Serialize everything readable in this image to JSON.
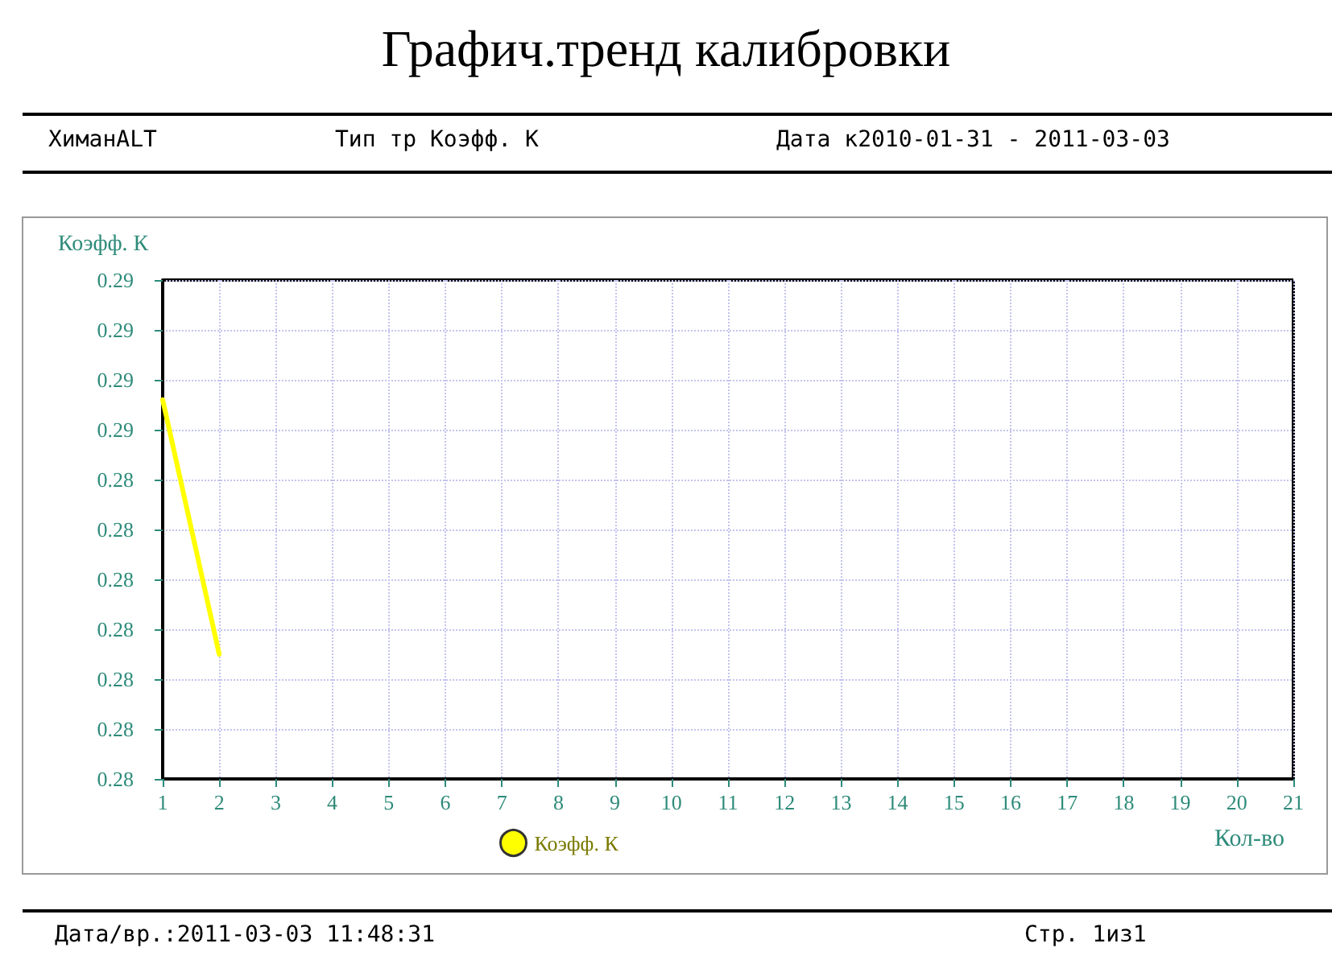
{
  "chart_data": {
    "type": "line",
    "title": "Графич.тренд калибровки",
    "xlabel": "Кол-во",
    "ylabel": "Коэфф. К",
    "annotations": [
      "ХиманALT",
      "Тип тр Коэфф. К",
      "Дата к2010-01-31 - 2011-03-03",
      "Дата/вр.:2011-03-03 11:48:31",
      "Стр. 1из1"
    ],
    "x": [
      1,
      2
    ],
    "series": [
      {
        "name": "Коэфф. К",
        "color": "#ffff00",
        "values": [
          0.2866,
          0.2815
        ]
      }
    ],
    "xlim": [
      1,
      21
    ],
    "xticks": [
      1,
      2,
      3,
      4,
      5,
      6,
      7,
      8,
      9,
      10,
      11,
      12,
      13,
      14,
      15,
      16,
      17,
      18,
      19,
      20,
      21
    ],
    "ylim": [
      0.279,
      0.289
    ],
    "yticks": [
      {
        "value": 0.279,
        "label": "0.28"
      },
      {
        "value": 0.28,
        "label": "0.28"
      },
      {
        "value": 0.281,
        "label": "0.28"
      },
      {
        "value": 0.282,
        "label": "0.28"
      },
      {
        "value": 0.283,
        "label": "0.28"
      },
      {
        "value": 0.284,
        "label": "0.28"
      },
      {
        "value": 0.285,
        "label": "0.28"
      },
      {
        "value": 0.286,
        "label": "0.29"
      },
      {
        "value": 0.287,
        "label": "0.29"
      },
      {
        "value": 0.288,
        "label": "0.29"
      },
      {
        "value": 0.289,
        "label": "0.29"
      }
    ],
    "grid": true,
    "legend": "bottom"
  }
}
